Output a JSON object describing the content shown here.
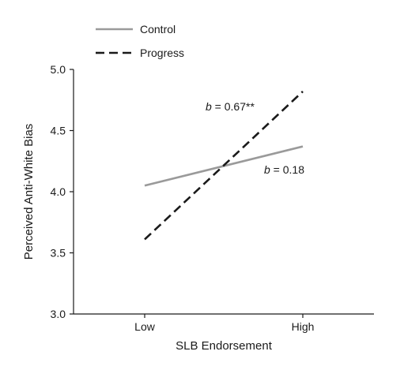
{
  "chart_data": {
    "type": "line",
    "xlabel": "SLB Endorsement",
    "ylabel": "Perceived Anti-White Bias",
    "categories": [
      "Low",
      "High"
    ],
    "ylim": [
      3.0,
      5.0
    ],
    "yticks": [
      "3.0",
      "3.5",
      "4.0",
      "4.5",
      "5.0"
    ],
    "grid": false,
    "legend_position": "top-left",
    "series": [
      {
        "name": "Control",
        "values": [
          4.05,
          4.37
        ],
        "color": "#9a9a9a",
        "dash": "solid"
      },
      {
        "name": "Progress",
        "values": [
          3.61,
          4.82
        ],
        "color": "#1a1a1a",
        "dash": "dashed"
      }
    ],
    "annotations": [
      {
        "series": "Progress",
        "italic": "b",
        "rest": " = 0.67**"
      },
      {
        "series": "Control",
        "italic": "b",
        "rest": " = 0.18"
      }
    ]
  }
}
